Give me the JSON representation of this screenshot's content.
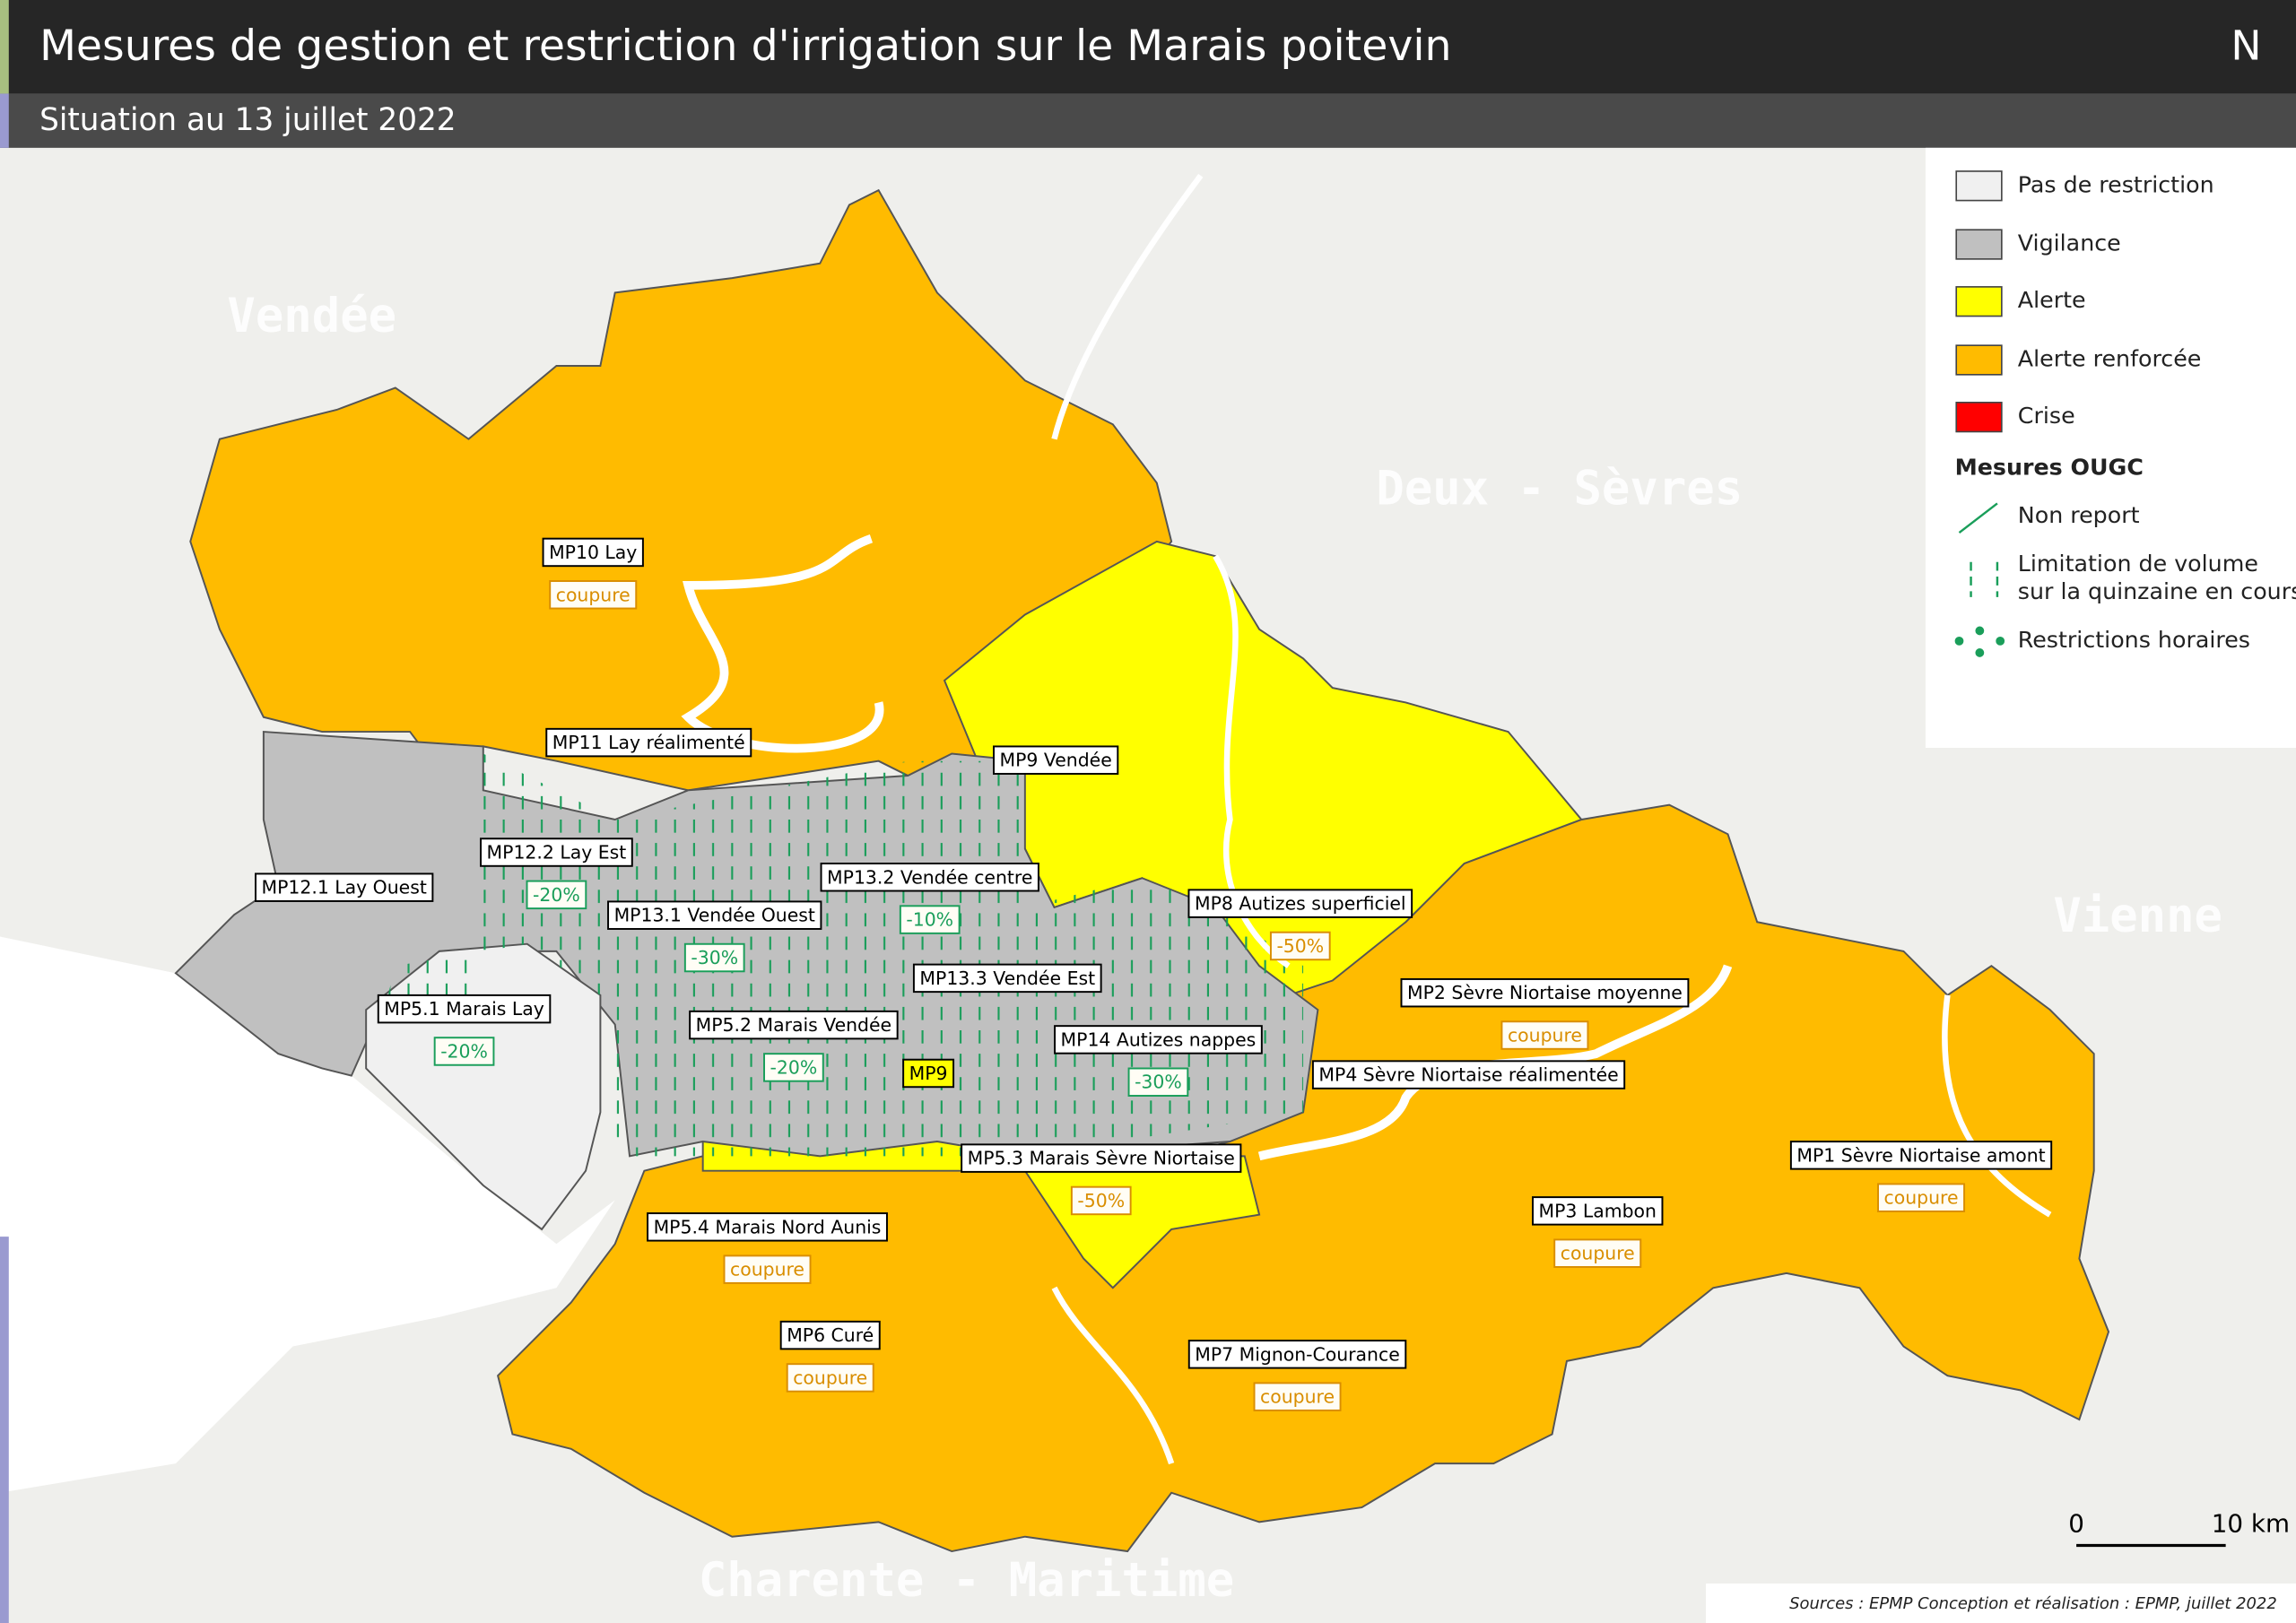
{
  "header": {
    "title": "Mesures de gestion et restriction d'irrigation sur le Marais poitevin",
    "subtitle": "Situation au 13 juillet 2022",
    "north": "N"
  },
  "departments": [
    "Vendée",
    "Deux - Sèvres",
    "Vienne",
    "Charente - Maritime"
  ],
  "zones": [
    {
      "label": "MP10 Lay",
      "measure": "coupure",
      "measure_color": "#d98e00"
    },
    {
      "label": "MP11 Lay réalimenté"
    },
    {
      "label": "MP12.1 Lay Ouest"
    },
    {
      "label": "MP12.2 Lay Est",
      "measure": "-20%",
      "measure_color": "#1a9e5a"
    },
    {
      "label": "MP13.1 Vendée Ouest",
      "measure": "-30%",
      "measure_color": "#1a9e5a"
    },
    {
      "label": "MP13.2 Vendée centre",
      "measure": "-10%",
      "measure_color": "#1a9e5a"
    },
    {
      "label": "MP13.3 Vendée Est"
    },
    {
      "label": "MP9 Vendée"
    },
    {
      "label": "MP8 Autizes superficiel",
      "measure": "-50%",
      "measure_color": "#d98e00"
    },
    {
      "label": "MP2 Sèvre Niortaise moyenne",
      "measure": "coupure",
      "measure_color": "#d98e00"
    },
    {
      "label": "MP4 Sèvre Niortaise réalimentée"
    },
    {
      "label": "MP14 Autizes nappes",
      "measure": "-30%",
      "measure_color": "#1a9e5a"
    },
    {
      "label": "MP5.1 Marais Lay",
      "measure": "-20%",
      "measure_color": "#1a9e5a"
    },
    {
      "label": "MP5.2 Marais Vendée",
      "measure": "-20%",
      "measure_color": "#1a9e5a"
    },
    {
      "label": "MP9"
    },
    {
      "label": "MP5.3 Marais Sèvre Niortaise",
      "measure": "-50%",
      "measure_color": "#d98e00"
    },
    {
      "label": "MP5.4 Marais Nord Aunis",
      "measure": "coupure",
      "measure_color": "#d98e00"
    },
    {
      "label": "MP6 Curé",
      "measure": "coupure",
      "measure_color": "#d98e00"
    },
    {
      "label": "MP7 Mignon-Courance",
      "measure": "coupure",
      "measure_color": "#d98e00"
    },
    {
      "label": "MP3 Lambon",
      "measure": "coupure",
      "measure_color": "#d98e00"
    },
    {
      "label": "MP1 Sèvre Niortaise amont",
      "measure": "coupure",
      "measure_color": "#d98e00"
    }
  ],
  "legend": {
    "levels": [
      {
        "label": "Pas de restriction",
        "color": "#f0f0f0"
      },
      {
        "label": "Vigilance",
        "color": "#c0c0c0"
      },
      {
        "label": "Alerte",
        "color": "#ffff00"
      },
      {
        "label": "Alerte renforcée",
        "color": "#ffbb00"
      },
      {
        "label": "Crise",
        "color": "#ff0000"
      }
    ],
    "measures_title": "Mesures OUGC",
    "measures": [
      {
        "lines": [
          "Non report"
        ]
      },
      {
        "lines": [
          "Limitation de volume",
          "sur la quinzaine en cours"
        ]
      },
      {
        "lines": [
          "Restrictions horaires"
        ]
      }
    ]
  },
  "scale": {
    "start": "0",
    "end": "10 km"
  },
  "sources": "Sources : EPMP Conception et réalisation : EPMP, juillet 2022"
}
